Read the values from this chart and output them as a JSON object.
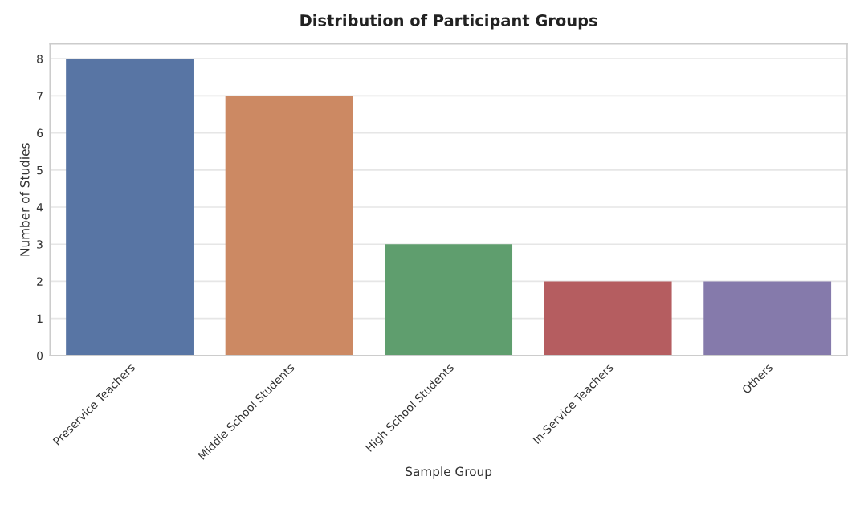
{
  "chart_data": {
    "type": "bar",
    "title": "Distribution of Participant Groups",
    "xlabel": "Sample Group",
    "ylabel": "Number of Studies",
    "categories": [
      "Preservice Teachers",
      "Middle School Students",
      "High School Students",
      "In-Service Teachers",
      "Others"
    ],
    "values": [
      8,
      7,
      3,
      2,
      2
    ],
    "colors": [
      "#5875a4",
      "#cc8963",
      "#5f9e6e",
      "#b55d60",
      "#857aab"
    ],
    "ylim": [
      0,
      8.4
    ],
    "yticks": [
      0,
      1,
      2,
      3,
      4,
      5,
      6,
      7,
      8
    ],
    "grid": "y"
  }
}
